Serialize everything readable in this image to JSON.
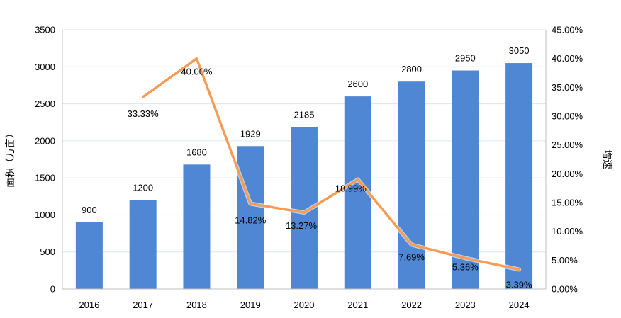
{
  "chart_data": {
    "type": "bar",
    "categories": [
      "2016",
      "2017",
      "2018",
      "2019",
      "2020",
      "2021",
      "2022",
      "2023",
      "2024"
    ],
    "series": [
      {
        "values": [
          900,
          1200,
          1680,
          1929,
          2185,
          2600,
          2800,
          2950,
          3050
        ],
        "data_labels": [
          "900",
          "1200",
          "1680",
          "1929",
          "2185",
          "2600",
          "2800",
          "2950",
          "3050"
        ],
        "color": "#4F87D4",
        "type": "bar",
        "axis": "left"
      },
      {
        "values": [
          null,
          33.33,
          40.0,
          14.82,
          13.27,
          18.99,
          7.69,
          5.36,
          3.39
        ],
        "data_labels": [
          "",
          "33.33%",
          "40.00%",
          "14.82%",
          "13.27%",
          "18.99%",
          "7.69%",
          "5.36%",
          "3.39%"
        ],
        "color": "#F59D56",
        "type": "line",
        "axis": "right"
      }
    ],
    "ylabel": "面积（万亩）",
    "y2label": "增速",
    "ylim": [
      0,
      3500
    ],
    "y2lim": [
      0,
      45
    ],
    "yticks": [
      "0",
      "500",
      "1000",
      "1500",
      "2000",
      "2500",
      "3000",
      "3500"
    ],
    "y2ticks": [
      "0.00%",
      "5.00%",
      "10.00%",
      "15.00%",
      "20.00%",
      "25.00%",
      "30.00%",
      "35.00%",
      "40.00%",
      "45.00%"
    ],
    "grid": true,
    "legend": "none"
  },
  "colors": {
    "bar": "#4F87D4",
    "line": "#F59D56",
    "grid": "#DCE6F0",
    "axis": "#BFBFBF"
  }
}
